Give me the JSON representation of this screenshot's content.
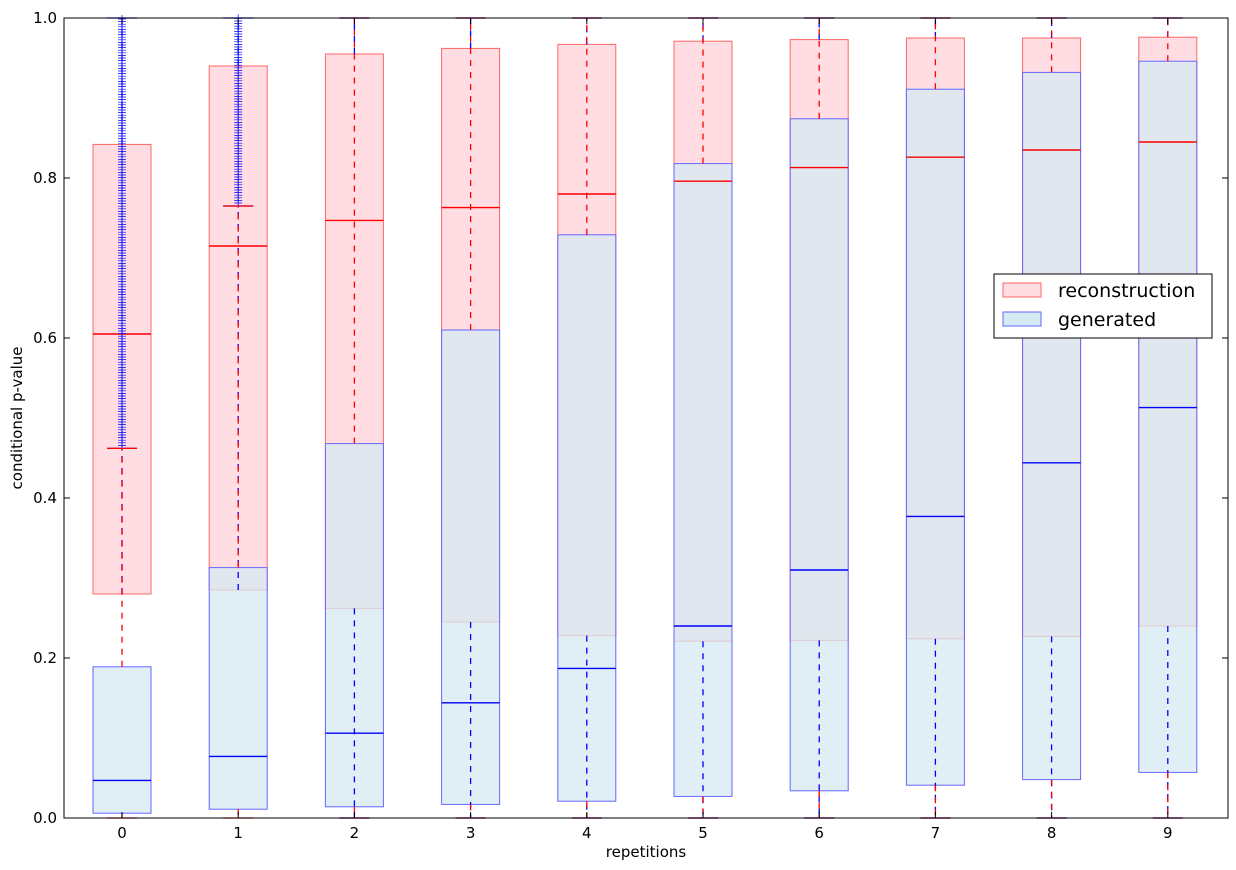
{
  "chart_data": {
    "type": "boxplot",
    "title": "",
    "xlabel": "repetitions",
    "ylabel": "conditional p-value",
    "ylim": [
      0.0,
      1.0
    ],
    "yticks": [
      "0.0",
      "0.2",
      "0.4",
      "0.6",
      "0.8",
      "1.0"
    ],
    "categories": [
      "0",
      "1",
      "2",
      "3",
      "4",
      "5",
      "6",
      "7",
      "8",
      "9"
    ],
    "legend": {
      "position": "center-right"
    },
    "series": [
      {
        "name": "reconstruction",
        "fill_color": "#ffdde3",
        "edge_color": "#ff6666",
        "median_color": "#ff0000",
        "whisker_color": "#0000ff",
        "q1": [
          0.28,
          0.285,
          0.262,
          0.245,
          0.228,
          0.221,
          0.222,
          0.224,
          0.227,
          0.24
        ],
        "median": [
          0.605,
          0.715,
          0.747,
          0.763,
          0.78,
          0.796,
          0.813,
          0.826,
          0.835,
          0.845
        ],
        "q3": [
          0.842,
          0.94,
          0.955,
          0.962,
          0.967,
          0.971,
          0.973,
          0.975,
          0.975,
          0.976
        ],
        "whisker_low": [
          0.462,
          0.765,
          0.0,
          0.0,
          0.0,
          0.0,
          0.0,
          0.0,
          0.0,
          0.0
        ],
        "whisker_high": [
          1.0,
          1.0,
          1.0,
          1.0,
          1.0,
          1.0,
          1.0,
          1.0,
          1.0,
          1.0
        ],
        "has_outliers": [
          true,
          true,
          false,
          false,
          false,
          false,
          false,
          false,
          false,
          false
        ]
      },
      {
        "name": "generated",
        "fill_color": "#d5eaf2",
        "edge_color": "#6666ff",
        "median_color": "#0000ff",
        "whisker_color": "#ff0000",
        "q1": [
          0.006,
          0.011,
          0.014,
          0.017,
          0.021,
          0.027,
          0.034,
          0.041,
          0.048,
          0.057
        ],
        "median": [
          0.047,
          0.077,
          0.106,
          0.144,
          0.187,
          0.24,
          0.31,
          0.377,
          0.444,
          0.513
        ],
        "q3": [
          0.189,
          0.313,
          0.468,
          0.61,
          0.729,
          0.818,
          0.874,
          0.911,
          0.932,
          0.946
        ],
        "whisker_low": [
          0.0,
          0.0,
          0.0,
          0.0,
          0.0,
          0.0,
          0.0,
          0.0,
          0.0,
          0.0
        ],
        "whisker_high": [
          0.462,
          0.765,
          1.0,
          1.0,
          1.0,
          1.0,
          1.0,
          1.0,
          1.0,
          1.0
        ],
        "has_outliers": [
          false,
          false,
          false,
          false,
          false,
          false,
          false,
          false,
          false,
          false
        ]
      }
    ]
  }
}
